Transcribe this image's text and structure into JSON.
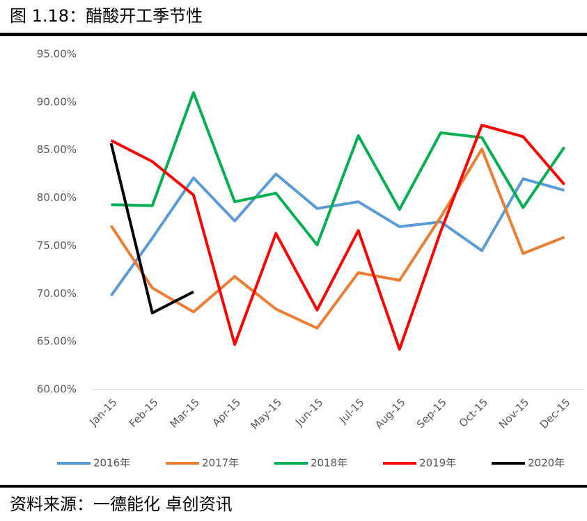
{
  "chart_data": {
    "type": "line",
    "title": "图 1.18：醋酸开工季节性",
    "source": "资料来源：一德能化  卓创资讯",
    "categories": [
      "Jan-15",
      "Feb-15",
      "Mar-15",
      "Apr-15",
      "May-15",
      "Jun-15",
      "Jul-15",
      "Aug-15",
      "Sep-15",
      "Oct-15",
      "Nov-15",
      "Dec-15"
    ],
    "series": [
      {
        "name": "2016年",
        "color": "#5b9bd5",
        "values": [
          69.8,
          75.8,
          82.1,
          77.6,
          82.5,
          78.9,
          79.6,
          77.0,
          77.5,
          74.5,
          82.0,
          80.8
        ]
      },
      {
        "name": "2017年",
        "color": "#ed7d31",
        "values": [
          77.1,
          70.6,
          68.1,
          71.8,
          68.4,
          66.4,
          72.2,
          71.4,
          78.0,
          85.1,
          74.2,
          75.9
        ]
      },
      {
        "name": "2018年",
        "color": "#00b050",
        "values": [
          79.3,
          79.2,
          91.0,
          79.6,
          80.5,
          75.1,
          86.5,
          78.8,
          86.8,
          86.3,
          79.0,
          85.3
        ]
      },
      {
        "name": "2019年",
        "color": "#ff0000",
        "values": [
          86.0,
          83.8,
          80.3,
          64.7,
          76.3,
          68.3,
          76.6,
          64.2,
          76.5,
          87.6,
          86.4,
          81.4
        ]
      },
      {
        "name": "2020年",
        "color": "#000000",
        "values": [
          85.7,
          68.0,
          70.2,
          null,
          null,
          null,
          null,
          null,
          null,
          null,
          null,
          null
        ]
      }
    ],
    "ylim": [
      60,
      95
    ],
    "yticks": [
      {
        "value": 60,
        "label": "60.00%"
      },
      {
        "value": 65,
        "label": "65.00%"
      },
      {
        "value": 70,
        "label": "70.00%"
      },
      {
        "value": 75,
        "label": "75.00%"
      },
      {
        "value": 80,
        "label": "80.00%"
      },
      {
        "value": 85,
        "label": "85.00%"
      },
      {
        "value": 90,
        "label": "90.00%"
      },
      {
        "value": 95,
        "label": "95.00%"
      }
    ],
    "grid": false,
    "legend": "bottom"
  }
}
